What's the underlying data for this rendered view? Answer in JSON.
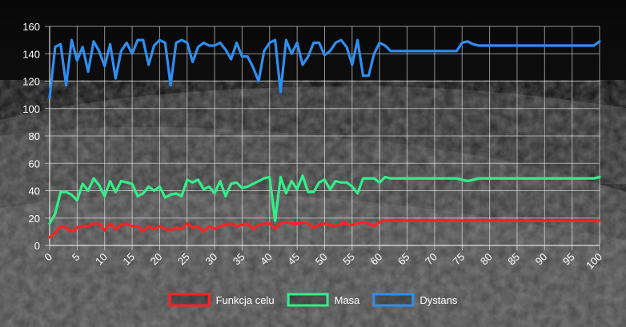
{
  "chart_data": {
    "type": "line",
    "title": "",
    "xlabel": "",
    "ylabel": "",
    "x": [
      0,
      1,
      2,
      3,
      4,
      5,
      6,
      7,
      8,
      9,
      10,
      11,
      12,
      13,
      14,
      15,
      16,
      17,
      18,
      19,
      20,
      21,
      22,
      23,
      24,
      25,
      26,
      27,
      28,
      29,
      30,
      31,
      32,
      33,
      34,
      35,
      36,
      37,
      38,
      39,
      40,
      41,
      42,
      43,
      44,
      45,
      46,
      47,
      48,
      49,
      50,
      51,
      52,
      53,
      54,
      55,
      56,
      57,
      58,
      59,
      60,
      61,
      62,
      63,
      64,
      65,
      66,
      67,
      68,
      69,
      70,
      71,
      72,
      73,
      74,
      75,
      76,
      77,
      78,
      79,
      80,
      81,
      82,
      83,
      84,
      85,
      86,
      87,
      88,
      89,
      90,
      91,
      92,
      93,
      94,
      95,
      96,
      97,
      98,
      99,
      100
    ],
    "xlim": [
      0,
      100
    ],
    "ylim": [
      0,
      160
    ],
    "x_ticks": [
      "0",
      "5",
      "10",
      "15",
      "20",
      "25",
      "30",
      "35",
      "40",
      "45",
      "50",
      "55",
      "60",
      "65",
      "70",
      "75",
      "80",
      "85",
      "90",
      "95",
      "100"
    ],
    "y_ticks": [
      "0",
      "20",
      "40",
      "60",
      "80",
      "100",
      "120",
      "140",
      "160"
    ],
    "grid": true,
    "legend_position": "bottom",
    "series": [
      {
        "name": "Funkcja celu",
        "color": "#ff2222",
        "values": [
          6,
          9,
          14,
          13,
          10,
          13,
          14,
          14,
          16,
          16,
          11,
          16,
          12,
          15,
          16,
          14,
          14,
          10,
          14,
          12,
          14,
          12,
          11,
          13,
          12,
          16,
          13,
          14,
          10,
          14,
          12,
          14,
          15,
          16,
          14,
          15,
          16,
          12,
          15,
          16,
          16,
          12,
          16,
          17,
          16,
          16,
          17,
          16,
          13,
          15,
          16,
          15,
          14,
          16,
          16,
          15,
          16,
          17,
          16,
          14,
          17,
          18,
          18,
          18,
          18,
          18,
          18,
          18,
          18,
          18,
          18,
          18,
          18,
          18,
          18,
          18,
          18,
          18,
          18,
          18,
          18,
          18,
          18,
          18,
          18,
          18,
          18,
          18,
          18,
          18,
          18,
          18,
          18,
          18,
          18,
          18,
          18,
          18,
          18,
          18,
          18
        ]
      },
      {
        "name": "Masa",
        "color": "#33ee88",
        "values": [
          16,
          23,
          39,
          39,
          37,
          33,
          45,
          40,
          49,
          44,
          36,
          47,
          39,
          47,
          46,
          45,
          36,
          38,
          43,
          40,
          43,
          35,
          37,
          38,
          36,
          48,
          46,
          48,
          41,
          43,
          38,
          47,
          36,
          45,
          46,
          42,
          43,
          45,
          47,
          49,
          50,
          18,
          50,
          38,
          47,
          41,
          51,
          39,
          39,
          46,
          48,
          41,
          47,
          46,
          46,
          43,
          38,
          49,
          49,
          49,
          46,
          50,
          49,
          49,
          49,
          49,
          49,
          49,
          49,
          49,
          49,
          49,
          49,
          49,
          49,
          48,
          47,
          48,
          49,
          49,
          49,
          49,
          49,
          49,
          49,
          49,
          49,
          49,
          49,
          49,
          49,
          49,
          49,
          49,
          49,
          49,
          49,
          49,
          49,
          49,
          50
        ]
      },
      {
        "name": "Dystans",
        "color": "#2f8ef0",
        "values": [
          108,
          145,
          147,
          117,
          150,
          135,
          145,
          127,
          149,
          142,
          131,
          147,
          122,
          142,
          148,
          140,
          150,
          150,
          132,
          146,
          150,
          148,
          117,
          148,
          150,
          148,
          134,
          145,
          148,
          146,
          146,
          148,
          143,
          136,
          148,
          138,
          138,
          130,
          120,
          142,
          148,
          150,
          112,
          150,
          140,
          148,
          132,
          138,
          148,
          148,
          139,
          142,
          148,
          150,
          145,
          132,
          150,
          124,
          124,
          140,
          148,
          146,
          142,
          142,
          142,
          142,
          142,
          142,
          142,
          142,
          142,
          142,
          142,
          142,
          142,
          148,
          149,
          147,
          146,
          146,
          146,
          146,
          146,
          146,
          146,
          146,
          146,
          146,
          146,
          146,
          146,
          146,
          146,
          146,
          146,
          146,
          146,
          146,
          146,
          146,
          149
        ]
      }
    ]
  }
}
